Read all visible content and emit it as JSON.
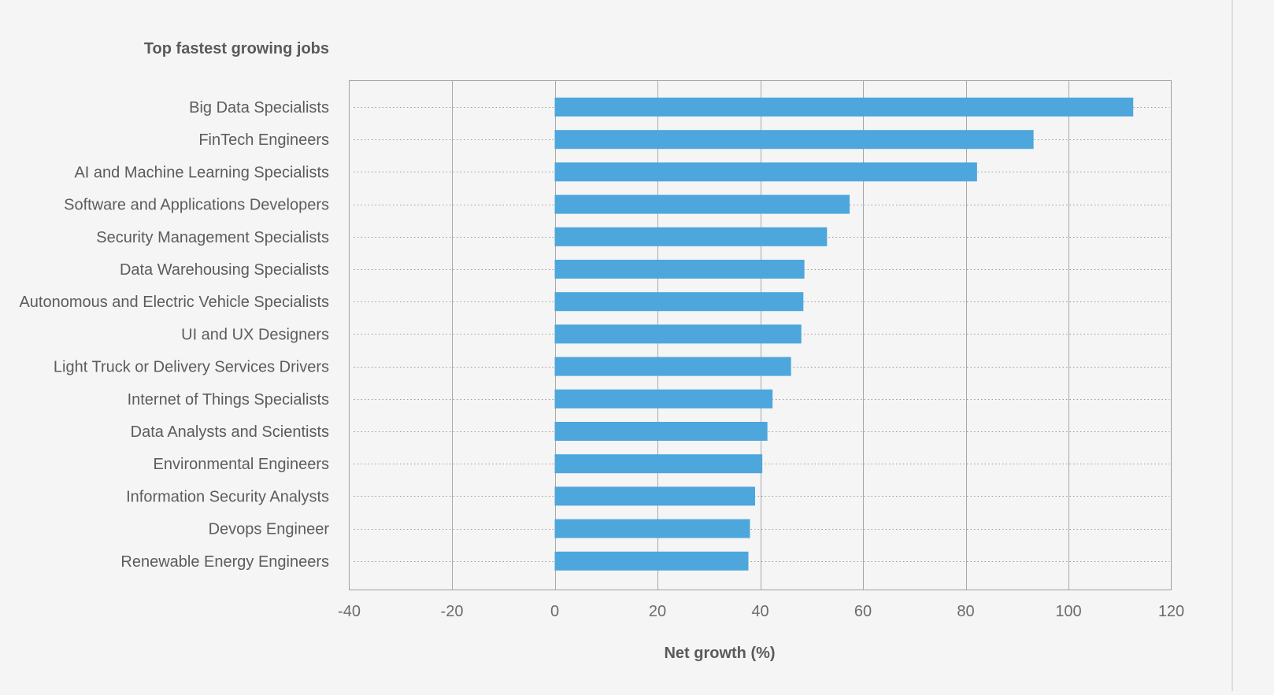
{
  "chart_data": {
    "type": "bar",
    "orientation": "horizontal",
    "title": "Top fastest growing jobs",
    "xlabel": "Net growth (%)",
    "ylabel": "",
    "xlim": [
      -40,
      120
    ],
    "x_ticks": [
      -40,
      -20,
      0,
      20,
      40,
      60,
      80,
      100,
      120
    ],
    "grid": "vertical lines at x ticks, dotted horizontal guides per category",
    "legend": "none",
    "categories": [
      "Big Data Specialists",
      "FinTech Engineers",
      "AI and Machine Learning Specialists",
      "Software and Applications Developers",
      "Security Management Specialists",
      "Data Warehousing Specialists",
      "Autonomous and Electric Vehicle Specialists",
      "UI and UX Designers",
      "Light Truck or Delivery Services Drivers",
      "Internet of Things Specialists",
      "Data Analysts and Scientists",
      "Environmental Engineers",
      "Information Security Analysts",
      "Devops Engineer",
      "Renewable Energy Engineers"
    ],
    "values": [
      112.6,
      93.2,
      82.2,
      57.4,
      53.0,
      48.6,
      48.4,
      48.0,
      46.0,
      42.4,
      41.4,
      40.4,
      39.0,
      38.0,
      37.7
    ],
    "colors": {
      "bar": "#4da6dc",
      "grid": "#a8a8a8",
      "frame": "#a0a0a0",
      "dotted": "#9a9a9a",
      "label_text": "#5c5c5c",
      "title_text": "#5a5a5a",
      "tick_text": "#6c6c6c",
      "background": "#f5f5f5"
    }
  }
}
